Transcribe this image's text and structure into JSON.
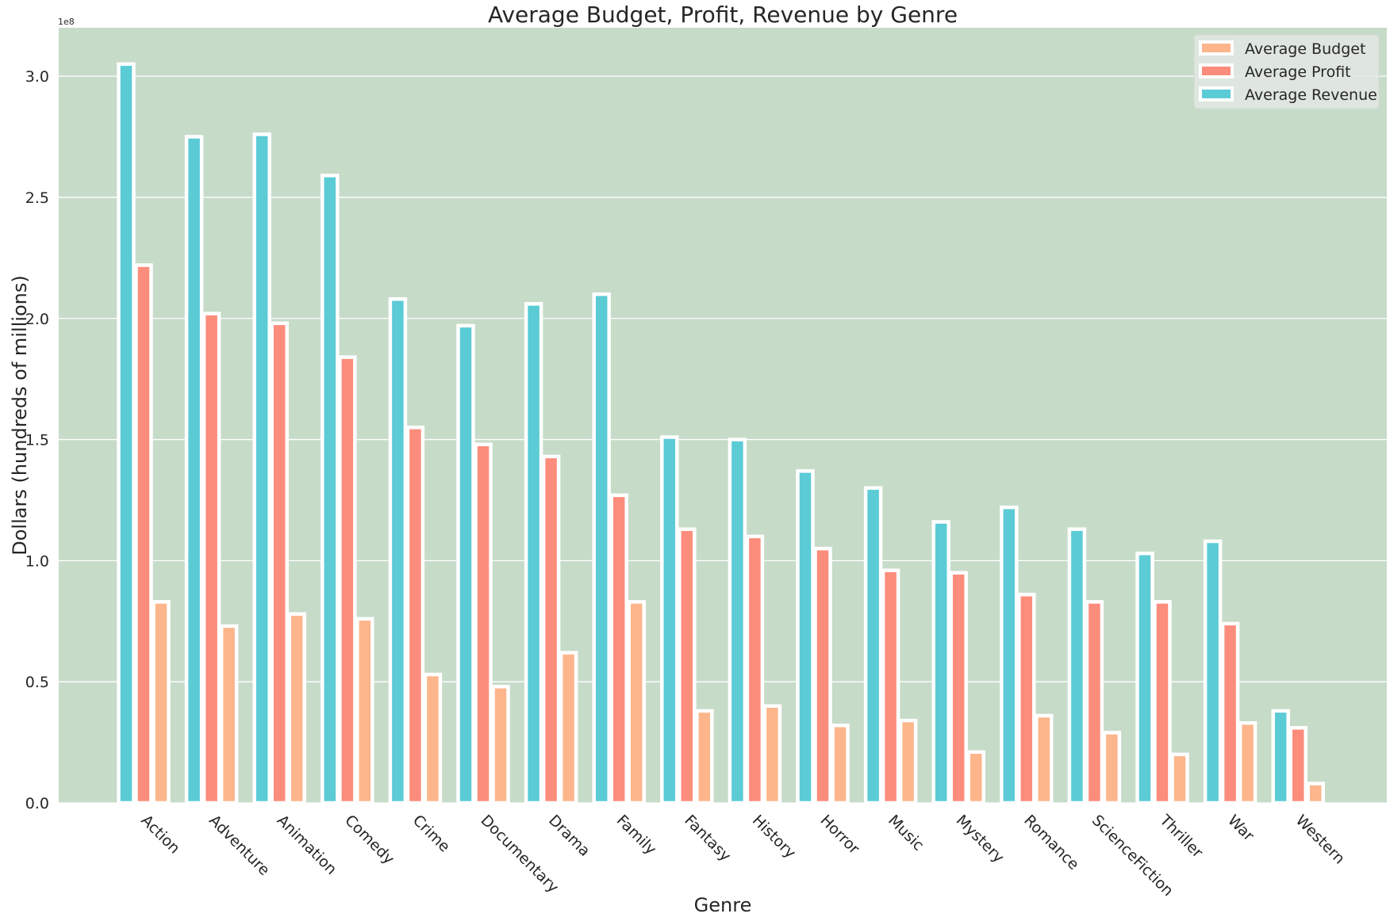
{
  "chart_data": {
    "type": "bar",
    "title": "Average Budget, Profit, Revenue by Genre",
    "xlabel": "Genre",
    "ylabel": "Dollars (hundreds of millions)",
    "y_exponent_label": "1e8",
    "ylim": [
      0,
      320000000.0
    ],
    "yticks": [
      0,
      50000000.0,
      100000000.0,
      150000000.0,
      200000000.0,
      250000000.0,
      300000000.0
    ],
    "ytick_labels": [
      "0.0",
      "0.5",
      "1.0",
      "1.5",
      "2.0",
      "2.5",
      "3.0"
    ],
    "background": "#c7dbc9",
    "grid": true,
    "legend_position": "top-right",
    "categories": [
      "Action",
      "Adventure",
      "Animation",
      "Comedy",
      "Crime",
      "Documentary",
      "Drama",
      "Family",
      "Fantasy",
      "History",
      "Horror",
      "Music",
      "Mystery",
      "Romance",
      "ScienceFiction",
      "Thriller",
      "War",
      "Western"
    ],
    "series": [
      {
        "name": "Average Revenue",
        "color": "#5bcbd5",
        "values": [
          305000000,
          275000000,
          276000000,
          259000000,
          208000000,
          197000000,
          206000000,
          210000000,
          151000000,
          150000000,
          137000000,
          130000000,
          116000000,
          122000000,
          113000000,
          103000000,
          108000000,
          38000000
        ]
      },
      {
        "name": "Average Profit",
        "color": "#fc8d7c",
        "values": [
          222000000,
          202000000,
          198000000,
          184000000,
          155000000,
          148000000,
          143000000,
          127000000,
          113000000,
          110000000,
          105000000,
          96000000,
          95000000,
          86000000,
          83000000,
          83000000,
          74000000,
          31000000
        ]
      },
      {
        "name": "Average Budget",
        "color": "#fdb68c",
        "values": [
          83000000,
          73000000,
          78000000,
          76000000,
          53000000,
          48000000,
          62000000,
          83000000,
          38000000,
          40000000,
          32000000,
          34000000,
          21000000,
          36000000,
          29000000,
          20000000,
          33000000,
          8000000
        ]
      }
    ],
    "legend_order": [
      "Average Budget",
      "Average Profit",
      "Average Revenue"
    ]
  }
}
